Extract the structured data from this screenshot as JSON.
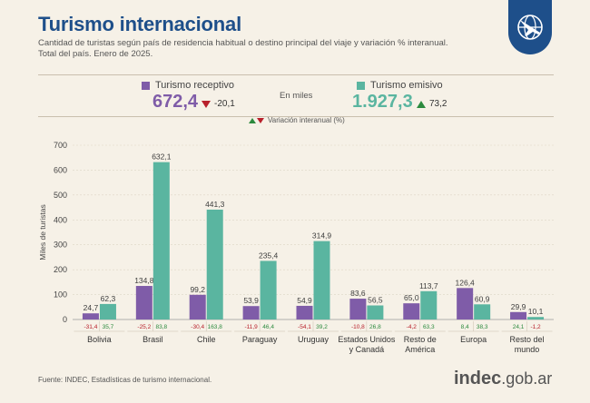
{
  "header": {
    "title": "Turismo internacional",
    "subtitle_line1": "Cantidad de turistas según país de residencia habitual o destino principal del viaje y variación % interanual.",
    "subtitle_line2": "Total del país. Enero de 2025."
  },
  "summary": {
    "receptivo": {
      "label": "Turismo receptivo",
      "value": "672,4",
      "variation": "-20,1",
      "direction": "down"
    },
    "emisivo": {
      "label": "Turismo emisivo",
      "value": "1.927,3",
      "variation": "73,2",
      "direction": "up"
    },
    "units": "En miles",
    "variation_legend": "Variación interanual (%)"
  },
  "colors": {
    "receptivo": "#7f5ca8",
    "emisivo": "#5ab5a0",
    "down": "#b8202b",
    "up": "#2c8a3e",
    "title": "#1e4f8a"
  },
  "chart_data": {
    "type": "bar",
    "ylabel": "Miles de turistas",
    "ylim": [
      0,
      700
    ],
    "yticks": [
      0,
      100,
      200,
      300,
      400,
      500,
      600,
      700
    ],
    "categories": [
      [
        "Bolivia"
      ],
      [
        "Brasil"
      ],
      [
        "Chile"
      ],
      [
        "Paraguay"
      ],
      [
        "Uruguay"
      ],
      [
        "Estados Unidos",
        "y Canadá"
      ],
      [
        "Resto de",
        "América"
      ],
      [
        "Europa"
      ],
      [
        "Resto del",
        "mundo"
      ]
    ],
    "series": [
      {
        "name": "Turismo receptivo",
        "values": [
          24.7,
          134.8,
          99.2,
          53.9,
          54.9,
          83.6,
          65.0,
          126.4,
          29.9
        ],
        "labels": [
          "24,7",
          "134,8",
          "99,2",
          "53,9",
          "54,9",
          "83,6",
          "65,0",
          "126,4",
          "29,9"
        ],
        "variation": [
          "-31,4",
          "-25,2",
          "-30,4",
          "-11,9",
          "-54,1",
          "-10,8",
          "-4,2",
          "8,4",
          "24,1"
        ]
      },
      {
        "name": "Turismo emisivo",
        "values": [
          62.3,
          632.1,
          441.3,
          235.4,
          314.9,
          56.5,
          113.7,
          60.9,
          10.1
        ],
        "labels": [
          "62,3",
          "632,1",
          "441,3",
          "235,4",
          "314,9",
          "56,5",
          "113,7",
          "60,9",
          "10,1"
        ],
        "variation": [
          "35,7",
          "83,8",
          "163,8",
          "46,4",
          "39,2",
          "26,8",
          "63,3",
          "38,3",
          "-1,2"
        ]
      }
    ]
  },
  "footer": {
    "source": "Fuente: INDEC, Estadísticas de turismo internacional.",
    "brand_bold": "indec",
    "brand_rest": ".gob.ar"
  }
}
